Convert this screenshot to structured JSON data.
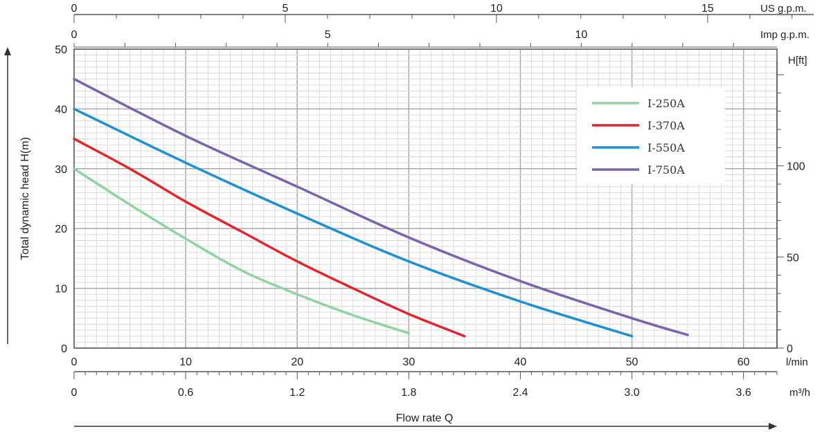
{
  "chart_data": {
    "type": "line",
    "ylabel": "Total dynamic head H(m)",
    "xlabel": "Flow rate Q",
    "xlim": [
      0,
      63
    ],
    "ylim": [
      0,
      50
    ],
    "x_unit": "l/min",
    "x_ticks": [
      0,
      10,
      20,
      30,
      40,
      50,
      60
    ],
    "y_ticks": [
      0,
      10,
      20,
      30,
      40,
      50
    ],
    "m3h_unit": "m³/h",
    "m3h_ticks": [
      "0",
      "0.6",
      "1.2",
      "1.8",
      "2.4",
      "3.0",
      "3.6"
    ],
    "us_unit": "US g.p.m.",
    "us_ticks": [
      0,
      5,
      10,
      15
    ],
    "imp_unit": "Imp g.p.m.",
    "imp_ticks": [
      0,
      5,
      10
    ],
    "ft_unit": "H[ft]",
    "ft_ticks": [
      0,
      50,
      100
    ],
    "grid": true,
    "legend_position": "top-right",
    "series": [
      {
        "name": "I-250A",
        "color": "#8fd3a2",
        "x": [
          0,
          5,
          10,
          15,
          20,
          25,
          30
        ],
        "y": [
          30,
          24,
          18.3,
          13,
          9,
          5.5,
          2.5
        ]
      },
      {
        "name": "I-370A",
        "color": "#e0262b",
        "x": [
          0,
          5,
          10,
          15,
          20,
          25,
          30,
          35
        ],
        "y": [
          35,
          30,
          24.5,
          19.5,
          14.5,
          10,
          5.7,
          2
        ]
      },
      {
        "name": "I-550A",
        "color": "#1d8fd3",
        "x": [
          0,
          10,
          20,
          30,
          40,
          50
        ],
        "y": [
          40,
          31,
          22.5,
          14.5,
          7.8,
          2
        ]
      },
      {
        "name": "I-750A",
        "color": "#7b62ad",
        "x": [
          0,
          10,
          20,
          30,
          40,
          50,
          55
        ],
        "y": [
          45,
          35.5,
          27,
          18.5,
          11.2,
          5,
          2.2
        ]
      }
    ]
  }
}
